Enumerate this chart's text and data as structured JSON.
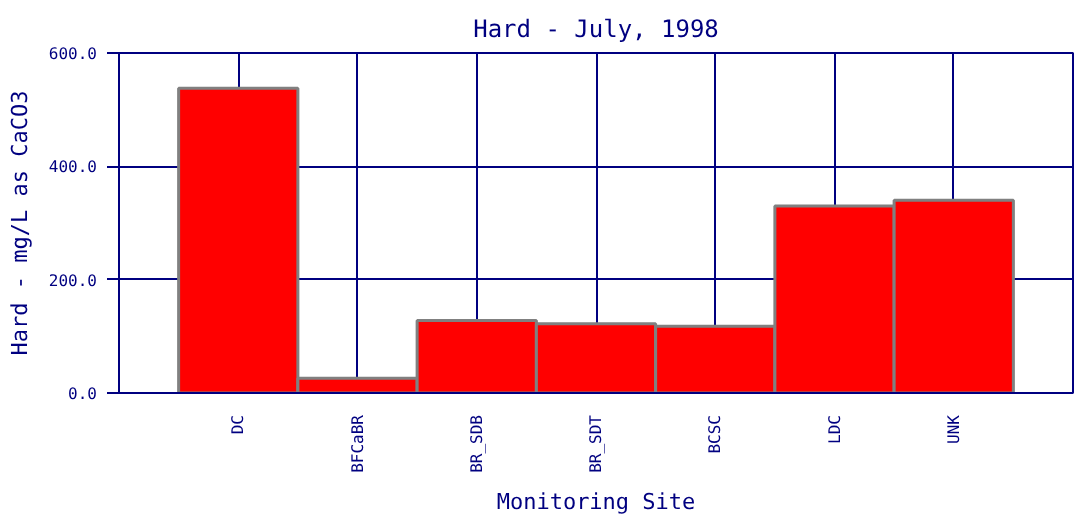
{
  "chart_data": {
    "type": "bar",
    "title": "Hard - July, 1998",
    "xlabel": "Monitoring Site",
    "ylabel": "Hard - mg/L as CaCO3",
    "categories": [
      "DC",
      "BFCaBR",
      "BR_SDB",
      "BR_SDT",
      "BCSC",
      "LDC",
      "UNK"
    ],
    "values": [
      538,
      26,
      128,
      122,
      118,
      330,
      340
    ],
    "color": "#ff0000",
    "ylim": [
      0,
      600
    ],
    "yticks": [
      {
        "value": 0,
        "label": "0.0"
      },
      {
        "value": 200,
        "label": "200.0"
      },
      {
        "value": 400,
        "label": "400.0"
      },
      {
        "value": 600,
        "label": "600.0"
      }
    ],
    "grid": true
  }
}
